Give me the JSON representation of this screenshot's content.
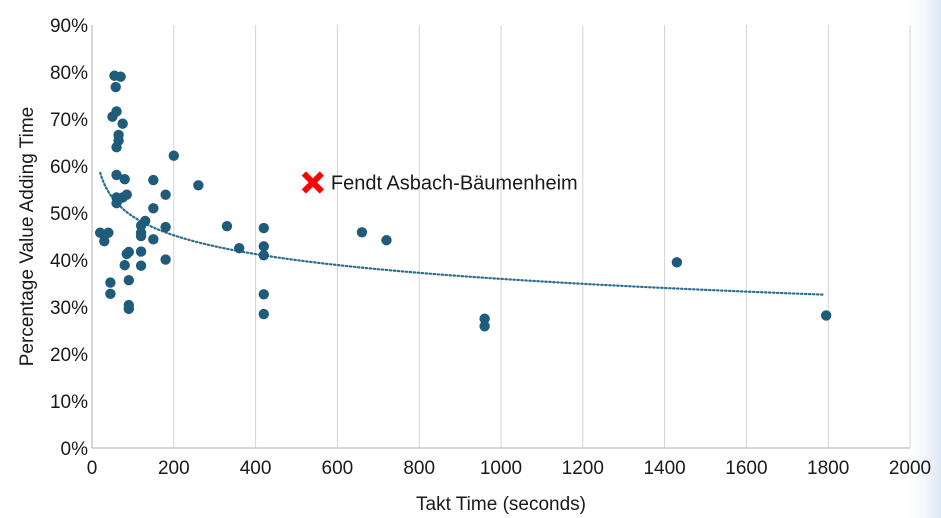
{
  "chart_data": {
    "type": "scatter",
    "title": "",
    "xlabel": "Takt Time (seconds)",
    "ylabel": "Percentage Value Adding Time",
    "xlim": [
      0,
      2000
    ],
    "ylim": [
      0,
      90
    ],
    "x_ticks": [
      0,
      200,
      400,
      600,
      800,
      1000,
      1200,
      1400,
      1600,
      1800,
      2000
    ],
    "y_ticks": [
      0,
      10,
      20,
      30,
      40,
      50,
      60,
      70,
      80,
      90
    ],
    "y_tick_labels": [
      "0%",
      "10%",
      "20%",
      "30%",
      "40%",
      "50%",
      "60%",
      "70%",
      "80%",
      "90%"
    ],
    "grid": "vertical",
    "legend": "none",
    "series": [
      {
        "marker_color": "#1f5b7a",
        "points": [
          [
            20,
            45.8
          ],
          [
            30,
            44.0
          ],
          [
            40,
            45.8
          ],
          [
            45,
            35.2
          ],
          [
            45,
            32.8
          ],
          [
            50,
            70.5
          ],
          [
            55,
            79.2
          ],
          [
            58,
            76.8
          ],
          [
            60,
            71.6
          ],
          [
            60,
            64.0
          ],
          [
            60,
            58.1
          ],
          [
            60,
            53.3
          ],
          [
            60,
            52.1
          ],
          [
            65,
            66.6
          ],
          [
            65,
            65.4
          ],
          [
            70,
            79.0
          ],
          [
            75,
            69.0
          ],
          [
            75,
            53.3
          ],
          [
            80,
            38.9
          ],
          [
            80,
            57.2
          ],
          [
            85,
            53.9
          ],
          [
            85,
            41.3
          ],
          [
            90,
            41.7
          ],
          [
            90,
            35.7
          ],
          [
            90,
            30.4
          ],
          [
            90,
            29.6
          ],
          [
            120,
            47.3
          ],
          [
            120,
            45.8
          ],
          [
            120,
            45.1
          ],
          [
            120,
            41.8
          ],
          [
            120,
            38.8
          ],
          [
            130,
            48.3
          ],
          [
            150,
            57.0
          ],
          [
            150,
            51.0
          ],
          [
            150,
            44.4
          ],
          [
            180,
            53.9
          ],
          [
            180,
            47.0
          ],
          [
            180,
            40.1
          ],
          [
            200,
            62.2
          ],
          [
            260,
            55.9
          ],
          [
            330,
            47.2
          ],
          [
            360,
            42.5
          ],
          [
            420,
            46.8
          ],
          [
            420,
            42.9
          ],
          [
            420,
            41.0
          ],
          [
            420,
            32.7
          ],
          [
            420,
            28.5
          ],
          [
            660,
            45.9
          ],
          [
            720,
            44.2
          ],
          [
            960,
            27.5
          ],
          [
            960,
            25.9
          ],
          [
            1430,
            39.5
          ],
          [
            1795,
            28.2
          ]
        ]
      }
    ],
    "trendline": {
      "type": "logarithmic",
      "style": "dotted",
      "color": "#2d6e90",
      "x_range": [
        20,
        1790
      ],
      "points": [
        [
          20,
          60.5
        ],
        [
          60,
          51.5
        ],
        [
          100,
          48.0
        ],
        [
          200,
          44.4
        ],
        [
          400,
          40.7
        ],
        [
          600,
          38.5
        ],
        [
          1000,
          36.4
        ],
        [
          1400,
          34.6
        ],
        [
          1790,
          33.5
        ]
      ]
    },
    "annotation": {
      "text": "Fendt Asbach-Bäumenheim",
      "x": 540,
      "y": 56.5,
      "marker": "x",
      "color": "#ff0000"
    }
  }
}
